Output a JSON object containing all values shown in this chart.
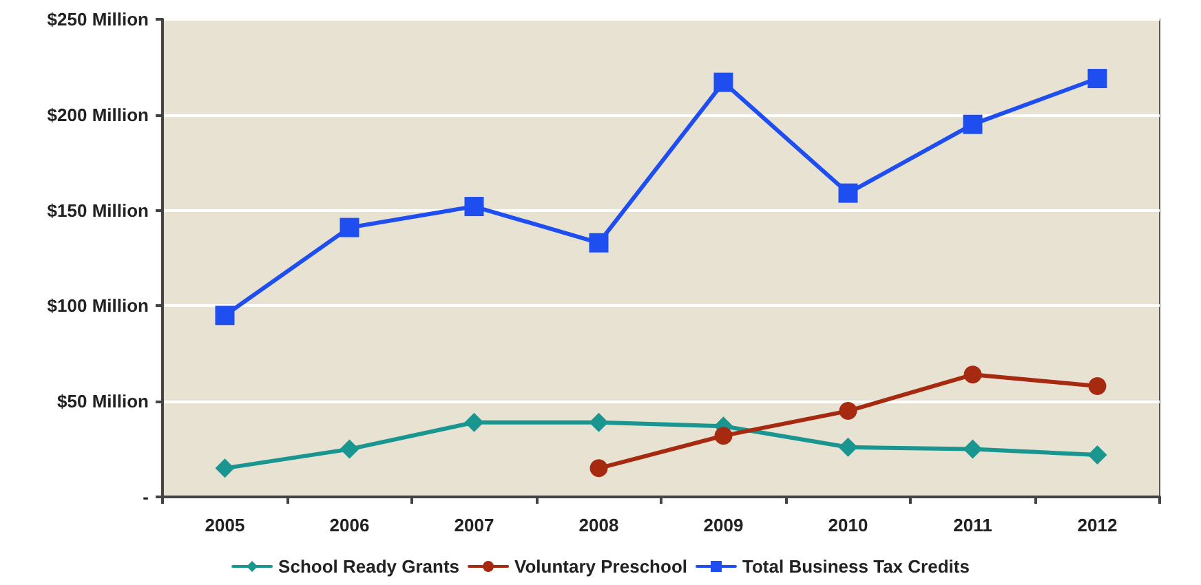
{
  "chart_data": {
    "type": "line",
    "categories": [
      "2005",
      "2006",
      "2007",
      "2008",
      "2009",
      "2010",
      "2011",
      "2012"
    ],
    "series": [
      {
        "name": "School Ready Grants",
        "color": "#1a9690",
        "marker": "diamond",
        "values": [
          15,
          25,
          39,
          39,
          37,
          26,
          25,
          22
        ]
      },
      {
        "name": "Voluntary Preschool",
        "color": "#a52a0f",
        "marker": "circle",
        "values": [
          null,
          null,
          null,
          15,
          32,
          45,
          64,
          58
        ]
      },
      {
        "name": "Total Business Tax Credits",
        "color": "#1f4ef0",
        "marker": "square",
        "values": [
          95,
          141,
          152,
          133,
          217,
          159,
          195,
          219
        ]
      }
    ],
    "ylim": [
      0,
      250
    ],
    "yticks": [
      {
        "value": 0,
        "label": "-"
      },
      {
        "value": 50,
        "label": "$50 Million"
      },
      {
        "value": 100,
        "label": "$100 Million"
      },
      {
        "value": 150,
        "label": "$150 Million"
      },
      {
        "value": 200,
        "label": "$200 Million"
      },
      {
        "value": 250,
        "label": "$250 Million"
      }
    ],
    "grid": "y",
    "legend": "bottom",
    "line_style": "solid"
  }
}
